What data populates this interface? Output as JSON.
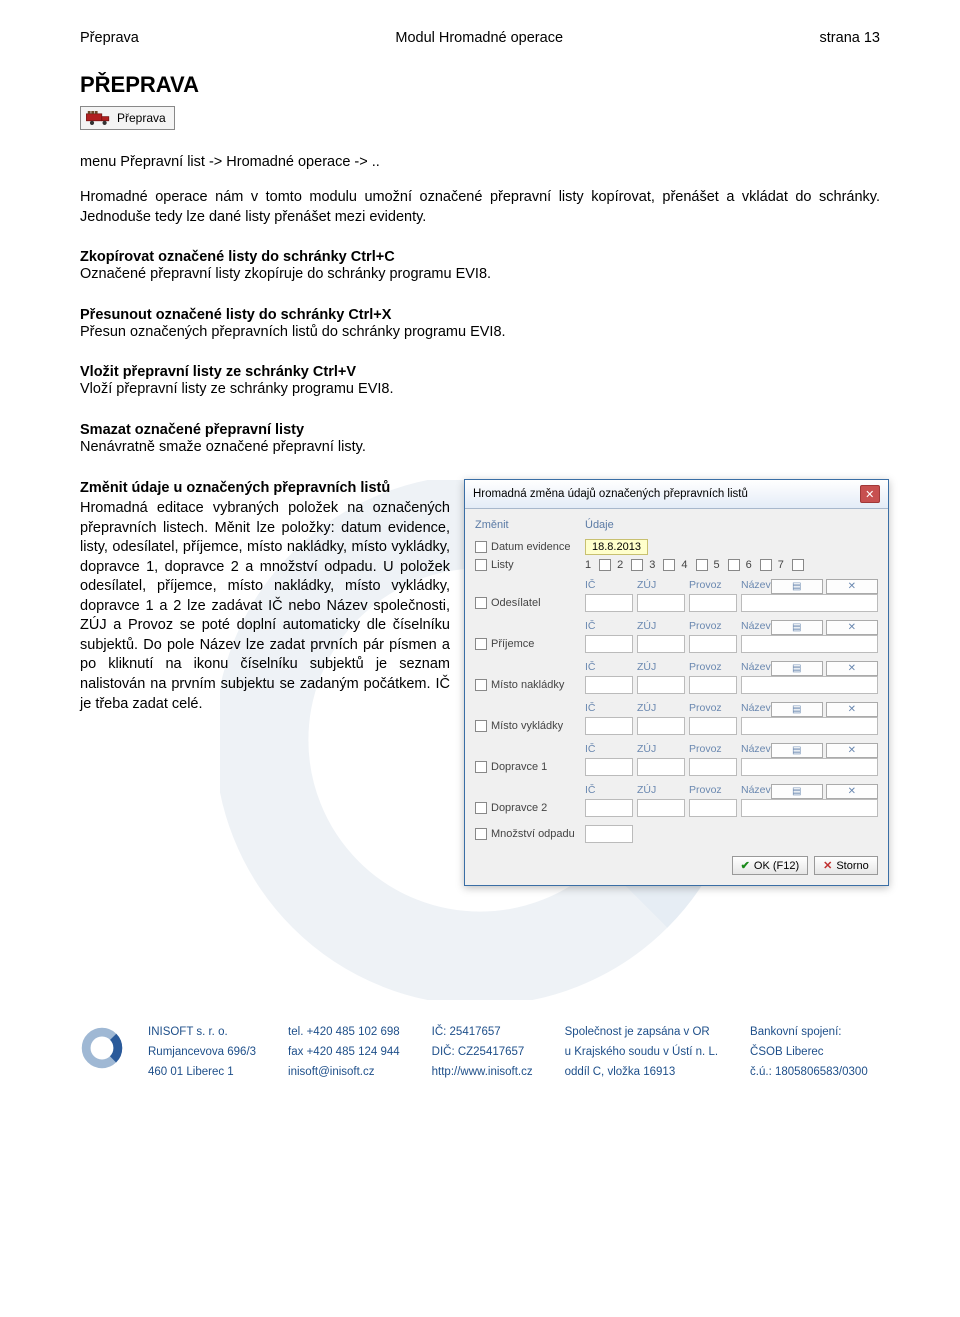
{
  "colors": {
    "footer_text": "#1e4f8a",
    "dialog_border": "#3a6ea5",
    "dialog_bg": "#f0f0f0",
    "close_bg": "#c75050",
    "dateinput_bg": "#ffffcc",
    "subhead_text": "#6a88b0"
  },
  "header": {
    "left": "Přeprava",
    "center": "Modul Hromadné operace",
    "right": "strana 13"
  },
  "title": "PŘEPRAVA",
  "iconLabel": "Přeprava",
  "menuLine": "menu Přepravní list -> Hromadné operace -> ..",
  "intro": "Hromadné operace nám v tomto modulu umožní označené přepravní listy kopírovat, přenášet a vkládat do schránky. Jednoduše tedy lze dané listy přenášet mezi evidenty.",
  "sections": [
    {
      "head": "Zkopírovat označené listy do schránky Ctrl+C",
      "body": "Označené přepravní listy zkopíruje do schránky programu EVI8."
    },
    {
      "head": "Přesunout označené listy do schránky Ctrl+X",
      "body": "Přesun označených přepravních listů do schránky programu EVI8."
    },
    {
      "head": "Vložit přepravní listy ze schránky Ctrl+V",
      "body": "Vloží přepravní listy ze schránky programu EVI8."
    },
    {
      "head": "Smazat označené přepravní listy",
      "body": "Nenávratně smaže označené přepravní listy."
    }
  ],
  "editSection": {
    "head": "Změnit údaje u označených přepravních listů",
    "body": "Hromadná editace vybraných položek na označených přepravních listech. Měnit lze položky: datum evidence, listy, odesílatel, příjemce, místo nakládky, místo vykládky, dopravce 1, dopravce 2 a množství odpadu. U položek odesílatel, příjemce, místo nakládky, místo vykládky, dopravce 1 a 2 lze zadávat IČ nebo Název společnosti, ZÚJ a Provoz se poté doplní automaticky dle číselníku subjektů. Do pole Název lze zadat prvních pár písmen a po kliknutí na ikonu číselníku subjektů je seznam nalistován na prvním subjektu se zadaným počátkem. IČ je třeba zadat celé."
  },
  "dialog": {
    "title": "Hromadná změna údajů označených přepravních listů",
    "colChange": "Změnit",
    "colData": "Údaje",
    "dateLabel": "Datum evidence",
    "dateValue": "18.8.2013",
    "listsLabel": "Listy",
    "listNums": [
      "1",
      "2",
      "3",
      "4",
      "5",
      "6",
      "7"
    ],
    "cols": {
      "ic": "IČ",
      "zuj": "ZÚJ",
      "provoz": "Provoz",
      "nazev": "Název"
    },
    "groups": [
      "Odesílatel",
      "Příjemce",
      "Místo nakládky",
      "Místo vykládky",
      "Dopravce 1",
      "Dopravce 2"
    ],
    "amountLabel": "Množství odpadu",
    "okBtn": "OK (F12)",
    "stornoBtn": "Storno"
  },
  "footer": {
    "col1": [
      "INISOFT s. r. o.",
      "Rumjancevova 696/3",
      "460 01 Liberec 1"
    ],
    "col2": [
      "tel. +420 485 102 698",
      "fax +420 485 124 944",
      "inisoft@inisoft.cz"
    ],
    "col3": [
      "IČ: 25417657",
      "DIČ: CZ25417657",
      "http://www.inisoft.cz"
    ],
    "col4": [
      "Společnost je zapsána v OR",
      "u Krajského soudu v Ústí n. L.",
      "oddíl C, vložka 16913"
    ],
    "col5": [
      "Bankovní spojení:",
      "ČSOB Liberec",
      "č.ú.: 1805806583/0300"
    ]
  }
}
